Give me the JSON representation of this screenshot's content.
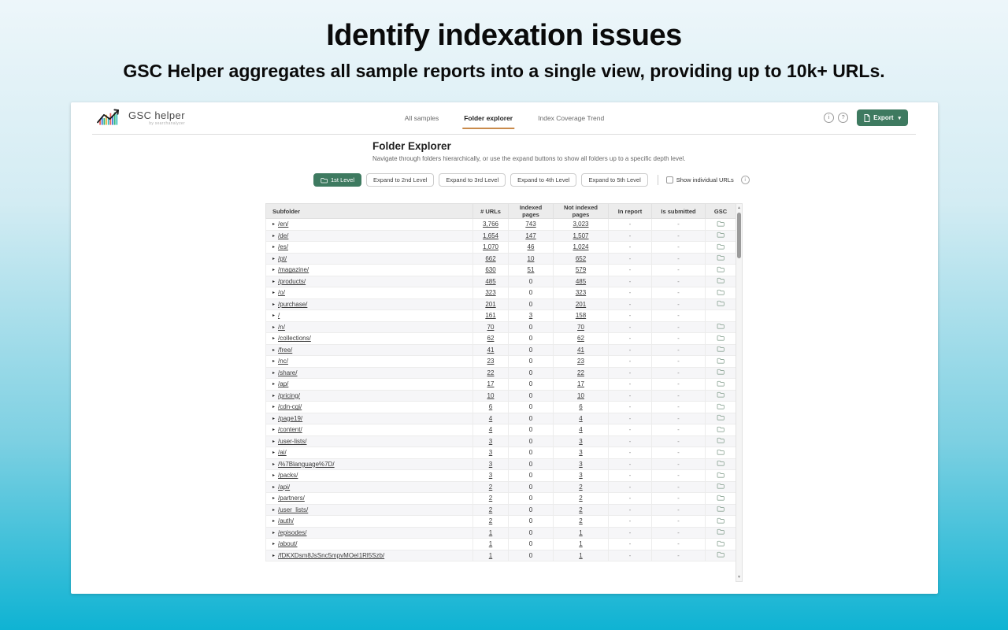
{
  "hero": {
    "title": "Identify indexation issues",
    "subtitle": "GSC Helper aggregates all sample reports into a single view, providing up to 10k+ URLs."
  },
  "app": {
    "logo": {
      "name": "GSC helper",
      "tagline": "by searchanalyzer"
    },
    "tabs": [
      {
        "label": "All samples",
        "active": false
      },
      {
        "label": "Folder explorer",
        "active": true
      },
      {
        "label": "Index Coverage Trend",
        "active": false
      }
    ],
    "actions": {
      "info": "i",
      "help": "?",
      "export": "Export"
    },
    "page": {
      "title": "Folder Explorer",
      "description": "Navigate through folders hierarchically, or use the expand buttons to show all folders up to a specific depth level."
    },
    "toolbar": {
      "levels": [
        {
          "label": "1st Level",
          "active": true
        },
        {
          "label": "Expand to 2nd Level",
          "active": false
        },
        {
          "label": "Expand to 3rd Level",
          "active": false
        },
        {
          "label": "Expand to 4th Level",
          "active": false
        },
        {
          "label": "Expand to 5th Level",
          "active": false
        }
      ],
      "show_individual_urls": "Show individual URLs",
      "info_badge": "i"
    },
    "table": {
      "columns": [
        "Subfolder",
        "# URLs",
        "Indexed pages",
        "Not indexed pages",
        "In report",
        "Is submitted",
        "GSC"
      ],
      "rows": [
        {
          "subfolder": "/en/",
          "urls": "3,766",
          "indexed": "743",
          "not_indexed": "3,023",
          "in_report": "-",
          "is_submitted": "-",
          "gsc": true
        },
        {
          "subfolder": "/de/",
          "urls": "1,654",
          "indexed": "147",
          "not_indexed": "1,507",
          "in_report": "-",
          "is_submitted": "-",
          "gsc": true
        },
        {
          "subfolder": "/es/",
          "urls": "1,070",
          "indexed": "46",
          "not_indexed": "1,024",
          "in_report": "-",
          "is_submitted": "-",
          "gsc": true
        },
        {
          "subfolder": "/pt/",
          "urls": "662",
          "indexed": "10",
          "not_indexed": "652",
          "in_report": "-",
          "is_submitted": "-",
          "gsc": true
        },
        {
          "subfolder": "/magazine/",
          "urls": "630",
          "indexed": "51",
          "not_indexed": "579",
          "in_report": "-",
          "is_submitted": "-",
          "gsc": true
        },
        {
          "subfolder": "/products/",
          "urls": "485",
          "indexed": "0",
          "not_indexed": "485",
          "in_report": "-",
          "is_submitted": "-",
          "gsc": true
        },
        {
          "subfolder": "/o/",
          "urls": "323",
          "indexed": "0",
          "not_indexed": "323",
          "in_report": "-",
          "is_submitted": "-",
          "gsc": true
        },
        {
          "subfolder": "/purchase/",
          "urls": "201",
          "indexed": "0",
          "not_indexed": "201",
          "in_report": "-",
          "is_submitted": "-",
          "gsc": true
        },
        {
          "subfolder": "/",
          "urls": "161",
          "indexed": "3",
          "not_indexed": "158",
          "in_report": "-",
          "is_submitted": "-",
          "gsc": false
        },
        {
          "subfolder": "/n/",
          "urls": "70",
          "indexed": "0",
          "not_indexed": "70",
          "in_report": "-",
          "is_submitted": "-",
          "gsc": true
        },
        {
          "subfolder": "/collections/",
          "urls": "62",
          "indexed": "0",
          "not_indexed": "62",
          "in_report": "-",
          "is_submitted": "-",
          "gsc": true
        },
        {
          "subfolder": "/free/",
          "urls": "41",
          "indexed": "0",
          "not_indexed": "41",
          "in_report": "-",
          "is_submitted": "-",
          "gsc": true
        },
        {
          "subfolder": "/nc/",
          "urls": "23",
          "indexed": "0",
          "not_indexed": "23",
          "in_report": "-",
          "is_submitted": "-",
          "gsc": true
        },
        {
          "subfolder": "/share/",
          "urls": "22",
          "indexed": "0",
          "not_indexed": "22",
          "in_report": "-",
          "is_submitted": "-",
          "gsc": true
        },
        {
          "subfolder": "/ap/",
          "urls": "17",
          "indexed": "0",
          "not_indexed": "17",
          "in_report": "-",
          "is_submitted": "-",
          "gsc": true
        },
        {
          "subfolder": "/pricing/",
          "urls": "10",
          "indexed": "0",
          "not_indexed": "10",
          "in_report": "-",
          "is_submitted": "-",
          "gsc": true
        },
        {
          "subfolder": "/cdn-cgi/",
          "urls": "6",
          "indexed": "0",
          "not_indexed": "6",
          "in_report": "-",
          "is_submitted": "-",
          "gsc": true
        },
        {
          "subfolder": "/page19/",
          "urls": "4",
          "indexed": "0",
          "not_indexed": "4",
          "in_report": "-",
          "is_submitted": "-",
          "gsc": true
        },
        {
          "subfolder": "/content/",
          "urls": "4",
          "indexed": "0",
          "not_indexed": "4",
          "in_report": "-",
          "is_submitted": "-",
          "gsc": true
        },
        {
          "subfolder": "/user-lists/",
          "urls": "3",
          "indexed": "0",
          "not_indexed": "3",
          "in_report": "-",
          "is_submitted": "-",
          "gsc": true
        },
        {
          "subfolder": "/ai/",
          "urls": "3",
          "indexed": "0",
          "not_indexed": "3",
          "in_report": "-",
          "is_submitted": "-",
          "gsc": true
        },
        {
          "subfolder": "/%7Blanguage%7D/",
          "urls": "3",
          "indexed": "0",
          "not_indexed": "3",
          "in_report": "-",
          "is_submitted": "-",
          "gsc": true
        },
        {
          "subfolder": "/packs/",
          "urls": "3",
          "indexed": "0",
          "not_indexed": "3",
          "in_report": "-",
          "is_submitted": "-",
          "gsc": true
        },
        {
          "subfolder": "/api/",
          "urls": "2",
          "indexed": "0",
          "not_indexed": "2",
          "in_report": "-",
          "is_submitted": "-",
          "gsc": true
        },
        {
          "subfolder": "/partners/",
          "urls": "2",
          "indexed": "0",
          "not_indexed": "2",
          "in_report": "-",
          "is_submitted": "-",
          "gsc": true
        },
        {
          "subfolder": "/user_lists/",
          "urls": "2",
          "indexed": "0",
          "not_indexed": "2",
          "in_report": "-",
          "is_submitted": "-",
          "gsc": true
        },
        {
          "subfolder": "/auth/",
          "urls": "2",
          "indexed": "0",
          "not_indexed": "2",
          "in_report": "-",
          "is_submitted": "-",
          "gsc": true
        },
        {
          "subfolder": "/episodes/",
          "urls": "1",
          "indexed": "0",
          "not_indexed": "1",
          "in_report": "-",
          "is_submitted": "-",
          "gsc": true
        },
        {
          "subfolder": "/about/",
          "urls": "1",
          "indexed": "0",
          "not_indexed": "1",
          "in_report": "-",
          "is_submitted": "-",
          "gsc": true
        },
        {
          "subfolder": "/fDKXDsm8JsSnc5mpvMOeI1Rl5Szb/",
          "urls": "1",
          "indexed": "0",
          "not_indexed": "1",
          "in_report": "-",
          "is_submitted": "-",
          "gsc": true
        }
      ]
    }
  },
  "colors": {
    "accent_green": "#3e7a60",
    "tab_underline": "#c98a4b",
    "gradient_top": "#edf6fa",
    "gradient_bottom": "#0fb3d3"
  }
}
